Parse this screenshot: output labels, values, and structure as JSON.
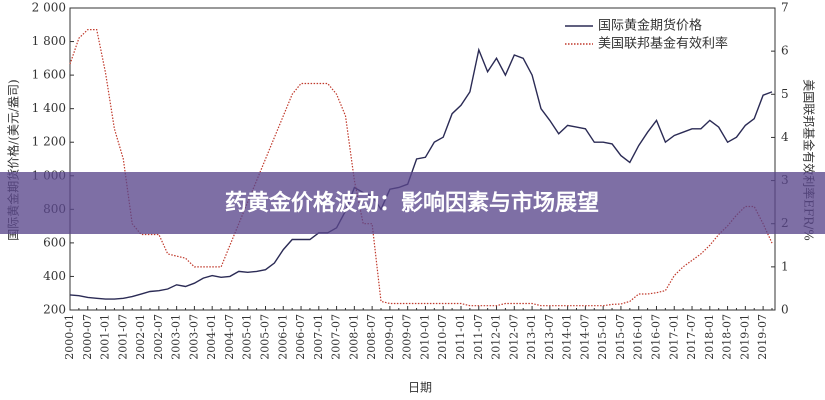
{
  "chart_data": {
    "type": "line",
    "banner": "药黄金价格波动：影响因素与市场展望",
    "x_label": "日期",
    "y_label": "国际黄金期货价格/(美元/盎司)",
    "y2_label": "美国联邦基金有效利率EFR/%",
    "categories": [
      "2000-01",
      null,
      "2000-07",
      null,
      "2001-01",
      null,
      "2001-07",
      null,
      "2002-01",
      null,
      "2002-07",
      null,
      "2003-01",
      null,
      "2003-07",
      null,
      "2004-01",
      null,
      "2004-07",
      null,
      "2005-01",
      null,
      "2005-07",
      null,
      "2006-01",
      null,
      "2006-07",
      null,
      "2007-01",
      null,
      "2007-07",
      null,
      "2008-01",
      null,
      "2008-07",
      null,
      "2009-01",
      null,
      "2009-07",
      null,
      "2010-01",
      null,
      "2010-07",
      null,
      "2011-01",
      null,
      "2011-07",
      null,
      "2012-01",
      null,
      "2012-07",
      null,
      "2013-01",
      null,
      "2013-07",
      null,
      "2014-01",
      null,
      "2014-07",
      null,
      "2015-01",
      null,
      "2015-07",
      null,
      "2016-01",
      null,
      "2016-07",
      null,
      "2017-01",
      null,
      "2017-07",
      null,
      "2018-01",
      null,
      "2018-07",
      null,
      "2019-01",
      null,
      "2019-07",
      null
    ],
    "series": [
      {
        "name": "国际黄金期货价格",
        "color": "#2b2b55",
        "dash": "none",
        "values": [
          290,
          285,
          275,
          270,
          265,
          265,
          270,
          280,
          295,
          310,
          315,
          325,
          350,
          340,
          360,
          390,
          405,
          395,
          400,
          430,
          425,
          430,
          440,
          480,
          560,
          620,
          620,
          620,
          660,
          660,
          690,
          790,
          930,
          900,
          880,
          800,
          920,
          930,
          950,
          1100,
          1110,
          1200,
          1230,
          1370,
          1420,
          1500,
          1750,
          1620,
          1700,
          1600,
          1720,
          1700,
          1600,
          1400,
          1330,
          1250,
          1300,
          1290,
          1280,
          1200,
          1200,
          1190,
          1120,
          1080,
          1180,
          1260,
          1330,
          1200,
          1240,
          1260,
          1280,
          1280,
          1330,
          1290,
          1200,
          1230,
          1300,
          1340,
          1480,
          1500
        ]
      },
      {
        "name": "美国联邦基金有效利率",
        "color": "#c0392b",
        "dash": "1.5 1.5",
        "axis": "y2",
        "values": [
          5.7,
          6.3,
          6.5,
          6.5,
          5.5,
          4.2,
          3.5,
          2.0,
          1.75,
          1.75,
          1.75,
          1.3,
          1.25,
          1.2,
          1.0,
          1.0,
          1.0,
          1.0,
          1.5,
          2.0,
          2.5,
          3.0,
          3.5,
          4.0,
          4.5,
          5.0,
          5.25,
          5.25,
          5.25,
          5.25,
          5.0,
          4.5,
          3.0,
          2.0,
          2.0,
          0.2,
          0.15,
          0.15,
          0.15,
          0.15,
          0.15,
          0.15,
          0.15,
          0.15,
          0.15,
          0.1,
          0.1,
          0.1,
          0.1,
          0.15,
          0.15,
          0.15,
          0.15,
          0.1,
          0.1,
          0.1,
          0.1,
          0.1,
          0.1,
          0.1,
          0.1,
          0.13,
          0.14,
          0.2,
          0.37,
          0.37,
          0.4,
          0.45,
          0.8,
          1.0,
          1.15,
          1.3,
          1.5,
          1.75,
          1.95,
          2.2,
          2.4,
          2.4,
          2.0,
          1.55
        ]
      }
    ],
    "ylim": [
      200,
      2000
    ],
    "yticks": [
      {
        "value": 2000,
        "label": "2 000"
      },
      {
        "value": 1800,
        "label": "1 800"
      },
      {
        "value": 1600,
        "label": "1 600"
      },
      {
        "value": 1400,
        "label": "1 400"
      },
      {
        "value": 1200,
        "label": "1 200"
      },
      {
        "value": 1000,
        "label": "1 000"
      },
      800,
      600,
      400,
      200
    ],
    "y2lim": [
      0,
      7
    ],
    "y2ticks": [
      0,
      1,
      2,
      3,
      4,
      5,
      6,
      7
    ],
    "legend": "upper right"
  }
}
